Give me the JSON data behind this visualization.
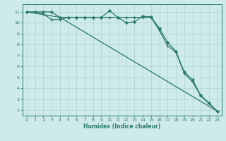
{
  "xlabel": "Humidex (Indice chaleur)",
  "bg_color": "#ceeaea",
  "grid_color": "#aed4d4",
  "line_color": "#2a7a6a",
  "xlim": [
    -0.5,
    23.5
  ],
  "ylim": [
    1.5,
    11.7
  ],
  "xticks": [
    0,
    1,
    2,
    3,
    4,
    5,
    6,
    7,
    8,
    9,
    10,
    11,
    12,
    13,
    14,
    15,
    16,
    17,
    18,
    19,
    20,
    21,
    22,
    23
  ],
  "yticks": [
    2,
    3,
    4,
    5,
    6,
    7,
    8,
    9,
    10,
    11
  ],
  "line1_x": [
    0,
    1,
    2,
    3,
    4,
    5,
    6,
    7,
    8,
    9,
    10,
    11,
    12,
    13,
    14,
    15,
    16,
    17,
    18,
    19,
    20,
    21,
    22,
    23
  ],
  "line1_y": [
    11,
    11,
    11,
    11,
    10.5,
    10.5,
    10.5,
    10.5,
    10.5,
    10.5,
    11.1,
    10.5,
    10.0,
    10.1,
    10.6,
    10.55,
    9.5,
    8.2,
    7.4,
    5.5,
    4.8,
    3.35,
    2.65,
    1.9
  ],
  "line2_x": [
    0,
    1,
    2,
    3,
    4,
    5,
    6,
    7,
    8,
    9,
    10,
    11,
    12,
    13,
    14,
    15,
    16,
    17,
    18,
    19,
    20,
    21,
    22,
    23
  ],
  "line2_y": [
    11,
    11,
    10.8,
    10.3,
    10.3,
    10.5,
    10.5,
    10.5,
    10.5,
    10.5,
    10.5,
    10.5,
    10.5,
    10.5,
    10.5,
    10.5,
    9.3,
    7.9,
    7.3,
    5.4,
    4.6,
    3.3,
    2.6,
    1.9
  ],
  "line3_x": [
    0,
    4,
    23
  ],
  "line3_y": [
    11,
    10.5,
    1.9
  ]
}
